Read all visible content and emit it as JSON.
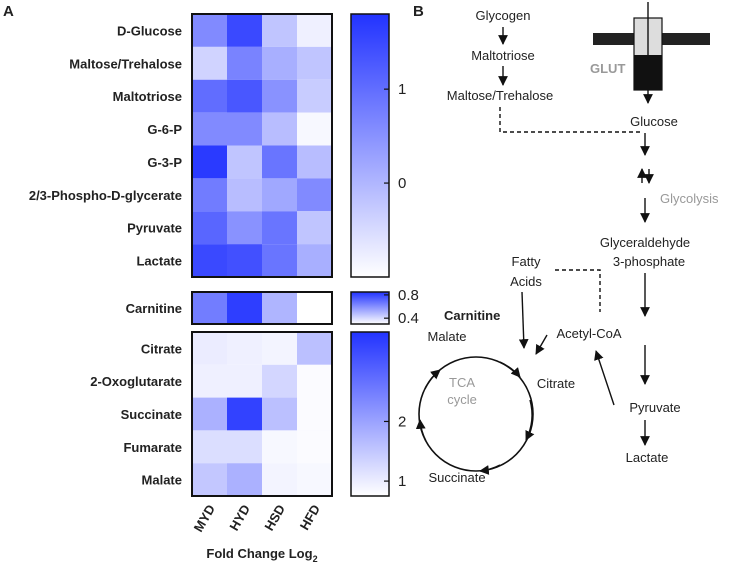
{
  "chart_data": {
    "type": "heatmap",
    "panel_label": "A",
    "columns": [
      "MYD",
      "HYD",
      "HSD",
      "HFD"
    ],
    "x_label": "Fold Change Log",
    "x_label_sub": "2",
    "colormap": [
      "#ffffff",
      "#2233ff"
    ],
    "blocks": [
      {
        "rows": [
          "D-Glucose",
          "Maltose/Trehalose",
          "Maltotriose",
          "G-6-P",
          "G-3-P",
          "2/3-Phospho-D-glycerate",
          "Pyruvate",
          "Lactate"
        ],
        "values": [
          [
            0.6,
            1.5,
            -0.2,
            -0.8
          ],
          [
            -0.4,
            0.7,
            0.1,
            -0.2
          ],
          [
            1.0,
            1.3,
            0.5,
            -0.3
          ],
          [
            0.6,
            0.6,
            -0.1,
            -0.9
          ],
          [
            1.7,
            -0.2,
            0.9,
            -0.1
          ],
          [
            0.8,
            -0.1,
            0.2,
            0.6
          ],
          [
            1.1,
            0.5,
            0.9,
            -0.2
          ],
          [
            1.5,
            1.4,
            0.9,
            0.1
          ]
        ],
        "zlim": [
          -1,
          1.8
        ],
        "zticks": [
          0,
          1
        ]
      },
      {
        "rows": [
          "Carnitine"
        ],
        "values": [
          [
            0.65,
            0.82,
            0.5,
            0.3
          ]
        ],
        "zlim": [
          0.3,
          0.85
        ],
        "zticks": [
          0.4,
          0.8
        ]
      },
      {
        "rows": [
          "Citrate",
          "2-Oxoglutarate",
          "Succinate",
          "Fumarate",
          "Malate"
        ],
        "values": [
          [
            1.0,
            0.95,
            0.9,
            1.6
          ],
          [
            0.95,
            0.95,
            1.3,
            0.8
          ],
          [
            1.8,
            3.3,
            1.6,
            0.8
          ],
          [
            1.2,
            1.2,
            0.85,
            0.8
          ],
          [
            1.5,
            1.8,
            0.9,
            0.85
          ]
        ],
        "zlim": [
          0.75,
          3.5
        ],
        "zticks": [
          1,
          2
        ]
      }
    ]
  },
  "diagram": {
    "panel_label": "B",
    "glut": "GLUT",
    "glycogen": "Glycogen",
    "maltotriose": "Maltotriose",
    "maltose": "Maltose/Trehalose",
    "glucose": "Glucose",
    "glycolysis": "Glycolysis",
    "gap_1": "Glyceraldehyde",
    "gap_2": "3-phosphate",
    "fatty_1": "Fatty",
    "fatty_2": "Acids",
    "carnitine": "Carnitine",
    "malate": "Malate",
    "acetyl": "Acetyl-CoA",
    "tca_1": "TCA",
    "tca_2": "cycle",
    "citrate": "Citrate",
    "pyruvate": "Pyruvate",
    "lactate": "Lactate",
    "succinate": "Succinate"
  }
}
